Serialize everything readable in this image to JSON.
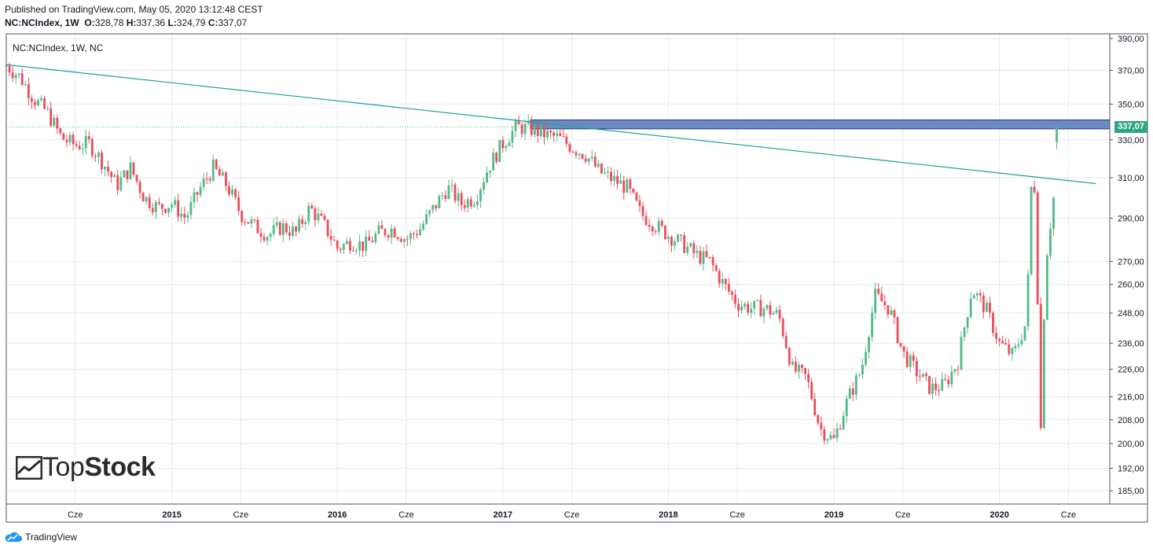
{
  "header": {
    "published": "Published on TradingView.com, May 05, 2020 13:12:48 CEST",
    "symbol": "NC:NCIndex, 1W",
    "o_label": "O:",
    "o": "328,78",
    "h_label": "H:",
    "h": "337,36",
    "l_label": "L:",
    "l": "324,79",
    "c_label": "C:",
    "c": "337,07"
  },
  "legend": "NC:NCIndex, 1W, NC",
  "watermark": {
    "part1": "Top",
    "part2": "Stock"
  },
  "footer": {
    "brand": "TradingView"
  },
  "colors": {
    "up": "#53b987",
    "down": "#eb4d5c",
    "trend": "#1aa294",
    "zone": "#6c87c4",
    "grid": "#e6e9ef"
  },
  "chart_data": {
    "type": "candlestick",
    "interval": "1W",
    "scale": "log",
    "x_range": [
      "2014-01",
      "2020-09"
    ],
    "y_range": [
      181,
      393
    ],
    "y_ticks": [
      390,
      370,
      350,
      330,
      310,
      290,
      270,
      260,
      248,
      236,
      226,
      216,
      208,
      200,
      192,
      185
    ],
    "y_tick_labels": [
      "390,00",
      "370,00",
      "350,00",
      "330,00",
      "310,00",
      "290,00",
      "270,00",
      "260,00",
      "248,00",
      "236,00",
      "226,00",
      "216,00",
      "208,00",
      "200,00",
      "192,00",
      "185,00"
    ],
    "x_ticks": [
      {
        "label": "Cze",
        "date": "2014-06"
      },
      {
        "label": "2015",
        "date": "2015-01"
      },
      {
        "label": "Cze",
        "date": "2015-06"
      },
      {
        "label": "2016",
        "date": "2016-01"
      },
      {
        "label": "Cze",
        "date": "2016-06"
      },
      {
        "label": "2017",
        "date": "2017-01"
      },
      {
        "label": "Cze",
        "date": "2017-06"
      },
      {
        "label": "2018",
        "date": "2018-01"
      },
      {
        "label": "Cze",
        "date": "2018-06"
      },
      {
        "label": "2019",
        "date": "2019-01"
      },
      {
        "label": "Cze",
        "date": "2019-06"
      },
      {
        "label": "2020",
        "date": "2020-01"
      },
      {
        "label": "Cze",
        "date": "2020-06"
      }
    ],
    "close_path": [
      [
        "2014-01",
        373
      ],
      [
        "2014-02",
        366
      ],
      [
        "2014-03",
        353
      ],
      [
        "2014-04",
        345
      ],
      [
        "2014-05",
        331
      ],
      [
        "2014-06",
        327
      ],
      [
        "2014-07",
        328
      ],
      [
        "2014-08",
        318
      ],
      [
        "2014-09",
        306
      ],
      [
        "2014-10",
        315
      ],
      [
        "2014-11",
        300
      ],
      [
        "2014-12",
        295
      ],
      [
        "2015-01",
        297
      ],
      [
        "2015-02",
        290
      ],
      [
        "2015-03",
        304
      ],
      [
        "2015-04",
        315
      ],
      [
        "2015-05",
        306
      ],
      [
        "2015-06",
        292
      ],
      [
        "2015-07",
        286
      ],
      [
        "2015-08",
        282
      ],
      [
        "2015-09",
        286
      ],
      [
        "2015-10",
        283
      ],
      [
        "2015-11",
        295
      ],
      [
        "2015-12",
        287
      ],
      [
        "2016-01",
        276
      ],
      [
        "2016-02",
        279
      ],
      [
        "2016-03",
        277
      ],
      [
        "2016-04",
        283
      ],
      [
        "2016-05",
        285
      ],
      [
        "2016-06",
        280
      ],
      [
        "2016-07",
        285
      ],
      [
        "2016-08",
        295
      ],
      [
        "2016-09",
        305
      ],
      [
        "2016-10",
        297
      ],
      [
        "2016-11",
        300
      ],
      [
        "2016-12",
        316
      ],
      [
        "2017-01",
        328
      ],
      [
        "2017-02",
        337
      ],
      [
        "2017-03",
        336
      ],
      [
        "2017-04",
        333
      ],
      [
        "2017-05",
        331
      ],
      [
        "2017-06",
        326
      ],
      [
        "2017-07",
        322
      ],
      [
        "2017-08",
        313
      ],
      [
        "2017-09",
        309
      ],
      [
        "2017-10",
        305
      ],
      [
        "2017-11",
        292
      ],
      [
        "2017-12",
        287
      ],
      [
        "2018-01",
        282
      ],
      [
        "2018-02",
        278
      ],
      [
        "2018-03",
        273
      ],
      [
        "2018-04",
        270
      ],
      [
        "2018-05",
        260
      ],
      [
        "2018-06",
        252
      ],
      [
        "2018-07",
        250
      ],
      [
        "2018-08",
        250
      ],
      [
        "2018-09",
        247
      ],
      [
        "2018-10",
        226
      ],
      [
        "2018-11",
        223
      ],
      [
        "2018-12",
        205
      ],
      [
        "2019-01",
        201
      ],
      [
        "2019-02",
        215
      ],
      [
        "2019-03",
        226
      ],
      [
        "2019-04",
        255
      ],
      [
        "2019-05",
        250
      ],
      [
        "2019-06",
        232
      ],
      [
        "2019-07",
        225
      ],
      [
        "2019-08",
        219
      ],
      [
        "2019-09",
        220
      ],
      [
        "2019-10",
        229
      ],
      [
        "2019-11",
        258
      ],
      [
        "2019-12",
        250
      ],
      [
        "2020-01",
        236
      ],
      [
        "2020-02",
        231
      ],
      [
        "2020-03",
        245
      ],
      [
        "2020-03",
        296
      ],
      [
        "2020-03",
        322
      ],
      [
        "2020-04",
        205
      ],
      [
        "2020-04",
        248
      ],
      [
        "2020-04",
        275
      ],
      [
        "2020-05",
        304
      ],
      [
        "2020-05",
        337.07
      ]
    ],
    "last_bar": {
      "open": 328.78,
      "high": 337.36,
      "low": 324.79,
      "close": 337.07
    },
    "last_price_label": "337,07",
    "trendline": {
      "start": [
        "2014-01",
        373.5
      ],
      "end": [
        "2020-08",
        307
      ]
    },
    "resistance_zone": {
      "start": "2017-03",
      "end": "2020-09",
      "low": 336,
      "high": 341
    }
  }
}
